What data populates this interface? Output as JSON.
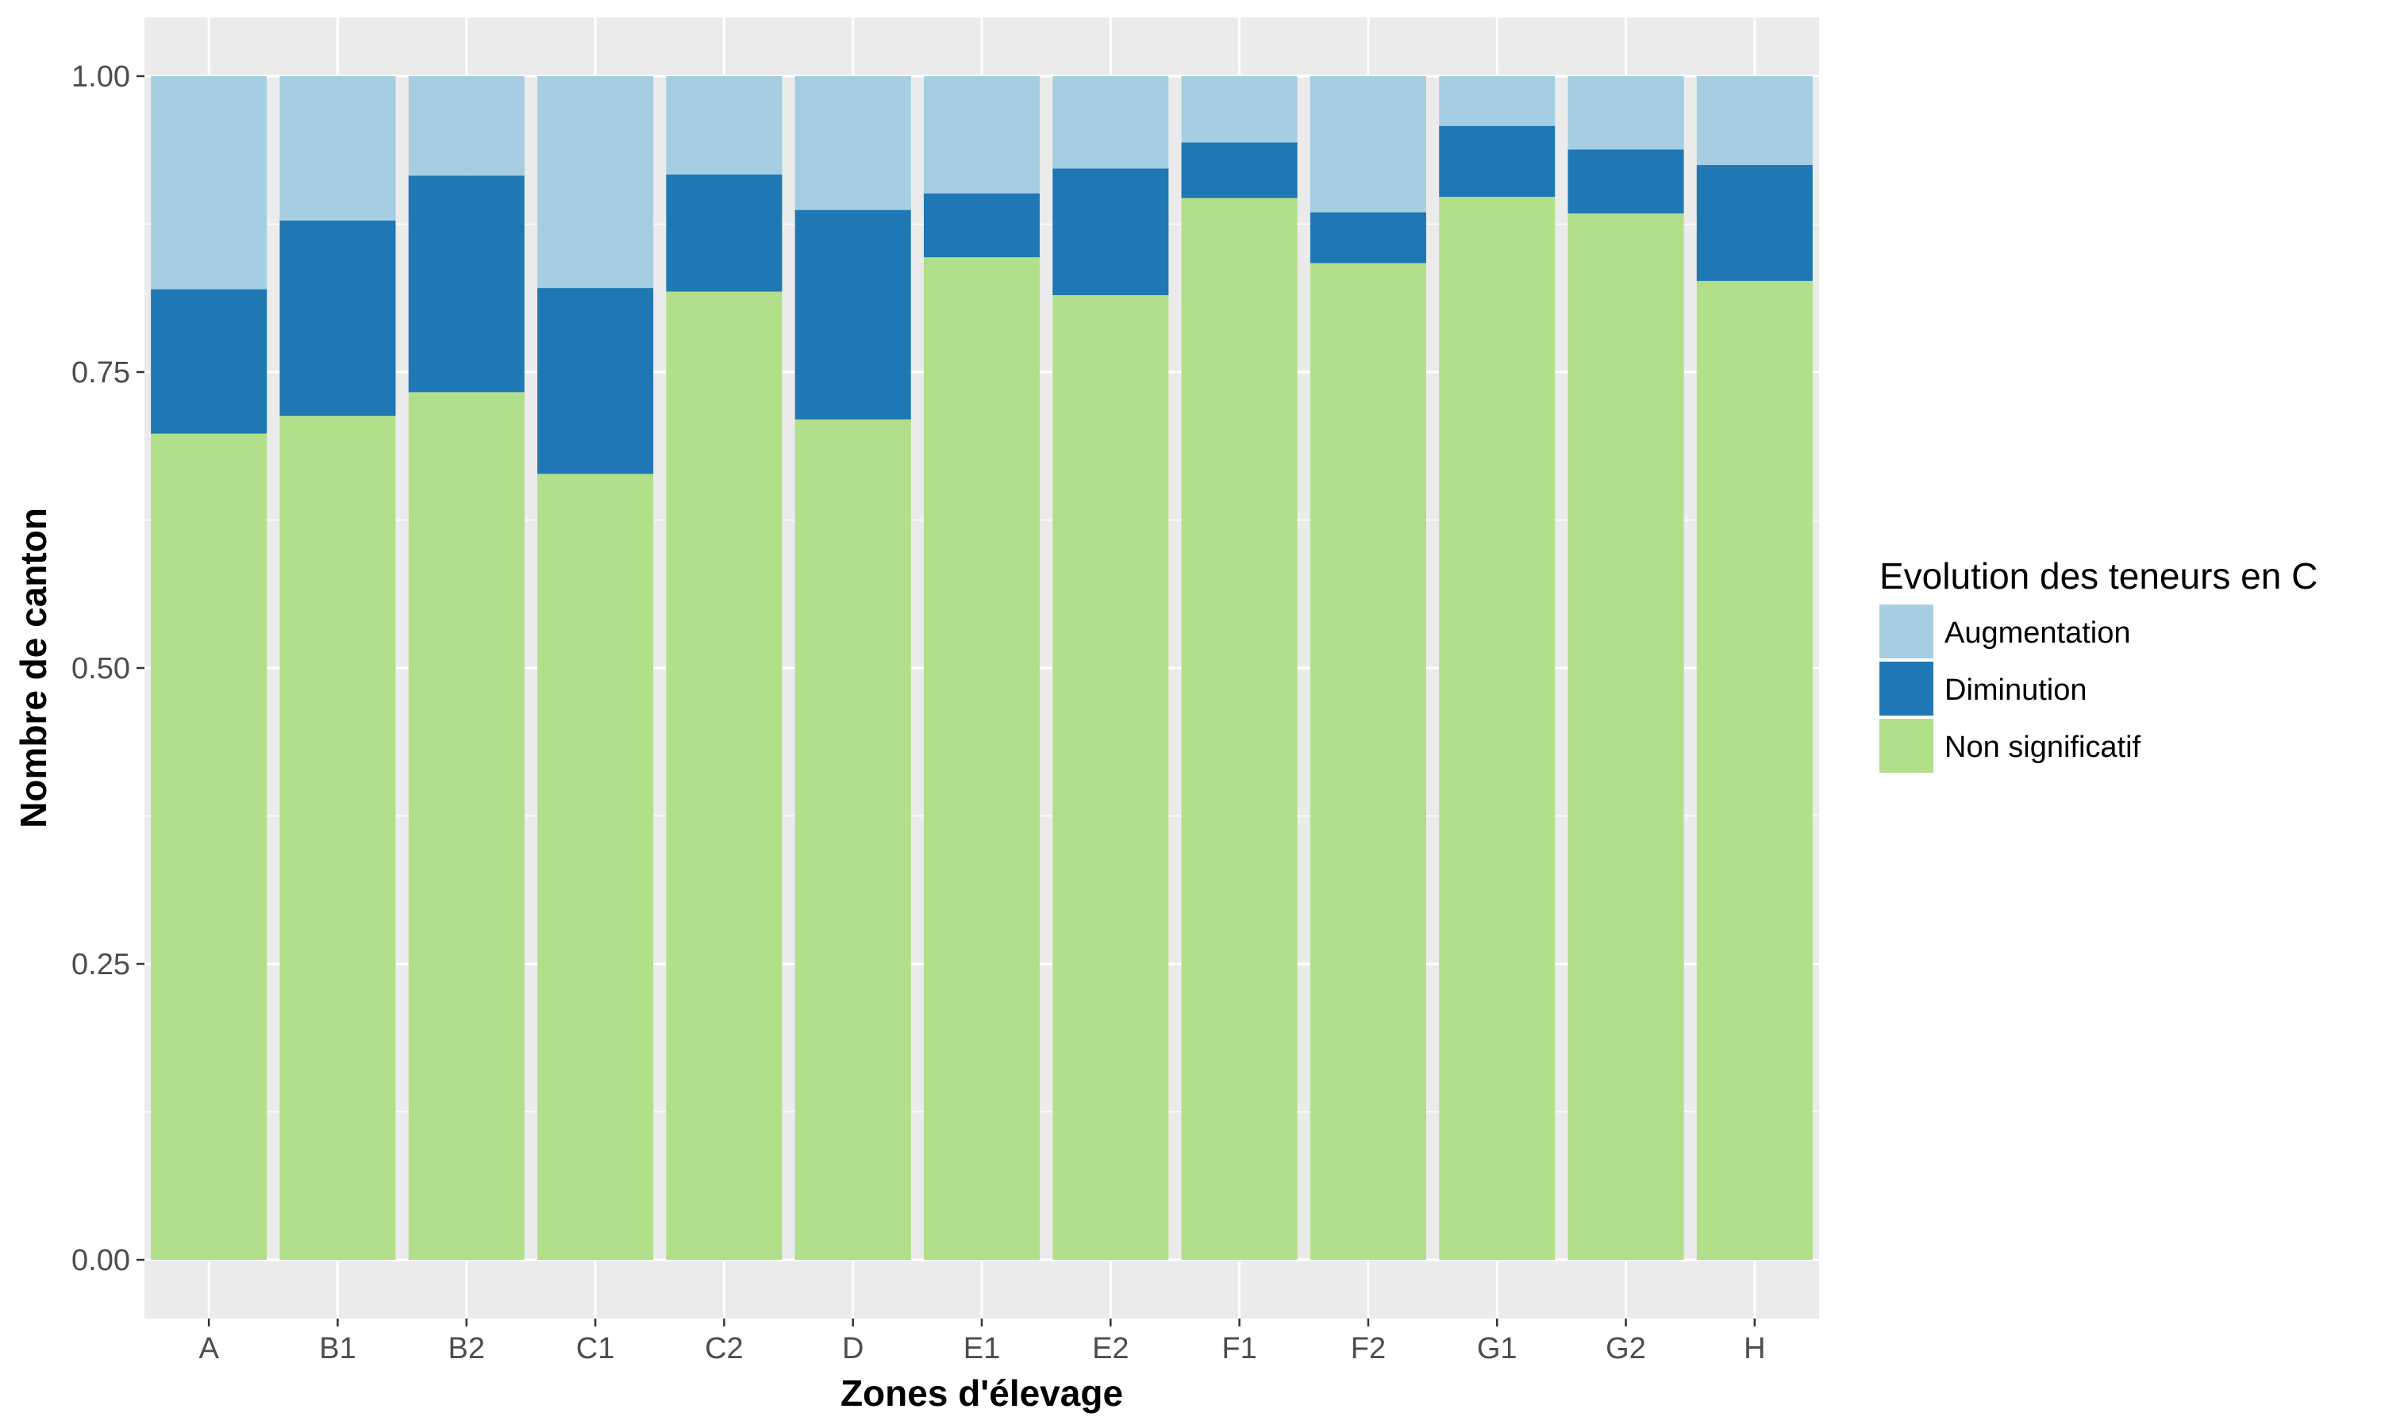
{
  "chart_data": {
    "type": "bar",
    "stacked": true,
    "xlabel": "Zones d'élevage",
    "ylabel": "Nombre de canton",
    "ylim": [
      0,
      1.0
    ],
    "yticks": [
      "0.00",
      "0.25",
      "0.50",
      "0.75",
      "1.00"
    ],
    "ytick_values": [
      0,
      0.25,
      0.5,
      0.75,
      1.0
    ],
    "categories": [
      "A",
      "B1",
      "B2",
      "C1",
      "C2",
      "D",
      "E1",
      "E2",
      "F1",
      "F2",
      "G1",
      "G2",
      "H"
    ],
    "grid": true,
    "legend_position": "right",
    "legend_title": "Evolution des teneurs en C",
    "series": [
      {
        "name": "Non significatif",
        "color": "#b2df8a",
        "values": [
          0.698,
          0.713,
          0.733,
          0.664,
          0.818,
          0.71,
          0.847,
          0.815,
          0.897,
          0.842,
          0.898,
          0.884,
          0.827
        ]
      },
      {
        "name": "Diminution",
        "color": "#1f78b4",
        "values": [
          0.122,
          0.165,
          0.183,
          0.157,
          0.099,
          0.177,
          0.054,
          0.107,
          0.047,
          0.043,
          0.06,
          0.054,
          0.098
        ]
      },
      {
        "name": "Augmentation",
        "color": "#a6cee3",
        "values": [
          0.18,
          0.122,
          0.084,
          0.179,
          0.083,
          0.113,
          0.099,
          0.078,
          0.056,
          0.115,
          0.042,
          0.062,
          0.075
        ]
      }
    ],
    "legend_order": [
      "Augmentation",
      "Diminution",
      "Non significatif"
    ],
    "colors": {
      "panel_bg": "#ebebeb",
      "grid": "#ffffff",
      "tick_text": "#4d4d4d",
      "tick_mark": "#333333"
    }
  }
}
